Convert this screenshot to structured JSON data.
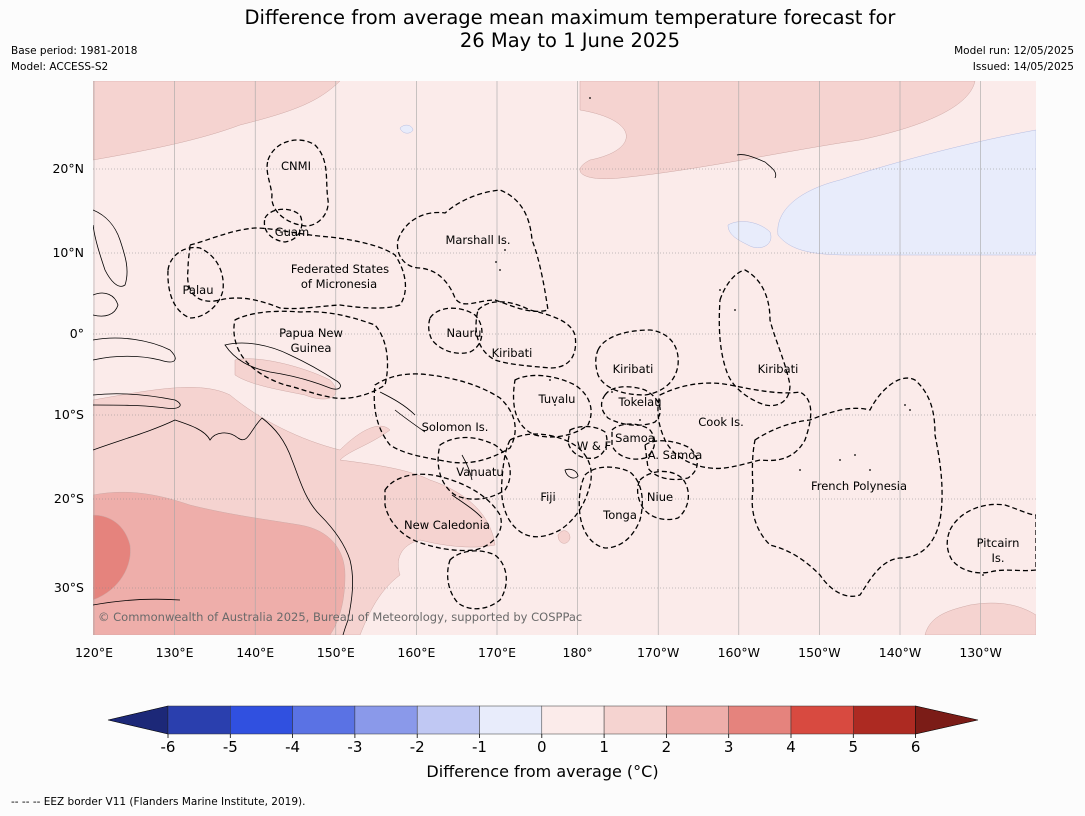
{
  "title_line1": "Difference from average mean maximum temperature forecast for",
  "title_line2": "26 May to 1 June 2025",
  "base_period": "Base period: 1981-2018",
  "model": "Model: ACCESS-S2",
  "model_run": "Model run: 12/05/2025",
  "issued": "Issued: 14/05/2025",
  "copyright": "© Commonwealth of Australia 2025, Bureau of Meteorology, supported by COSPPac",
  "footer": "-- -- -- EEZ border V11 (Flanders Marine Institute, 2019).",
  "colorbar_title": "Difference from average (",
  "colorbar_unit": "°C)",
  "lon_labels": [
    "120°E",
    "130°E",
    "140°E",
    "150°E",
    "160°E",
    "170°E",
    "180°",
    "170°W",
    "160°W",
    "150°W",
    "140°W",
    "130°W"
  ],
  "lat_labels": [
    "20°N",
    "10°N",
    "0°",
    "10°S",
    "20°S",
    "30°S"
  ],
  "regions": [
    "CNMI",
    "Guam",
    "Marshall Is.",
    "Federated States",
    "of Micronesia",
    "Palau",
    "Papua New",
    "Guinea",
    "Nauru",
    "Kiribati",
    "Kiribati",
    "Kiribati",
    "Tuvalu",
    "Tokelau",
    "Solomon Is.",
    "W & F",
    "Samoa",
    "A. Samoa",
    "Cook Is.",
    "Vanuatu",
    "Fiji",
    "Niue",
    "Tonga",
    "French Polynesia",
    "New Caledonia",
    "Pitcairn",
    "Is."
  ],
  "colorbar": {
    "ticks": [
      "-6",
      "-5",
      "-4",
      "-3",
      "-2",
      "-1",
      "0",
      "1",
      "2",
      "3",
      "4",
      "5",
      "6"
    ],
    "colors": [
      "#2a3fae",
      "#3050e0",
      "#5a72e4",
      "#8a99ea",
      "#c0c8f3",
      "#e8ecfb",
      "#fbebea",
      "#f5d3d0",
      "#eeaeaa",
      "#e5837d",
      "#d84a40",
      "#ad2a22"
    ],
    "under_color": "#1c2878",
    "over_color": "#7b1c17"
  }
}
